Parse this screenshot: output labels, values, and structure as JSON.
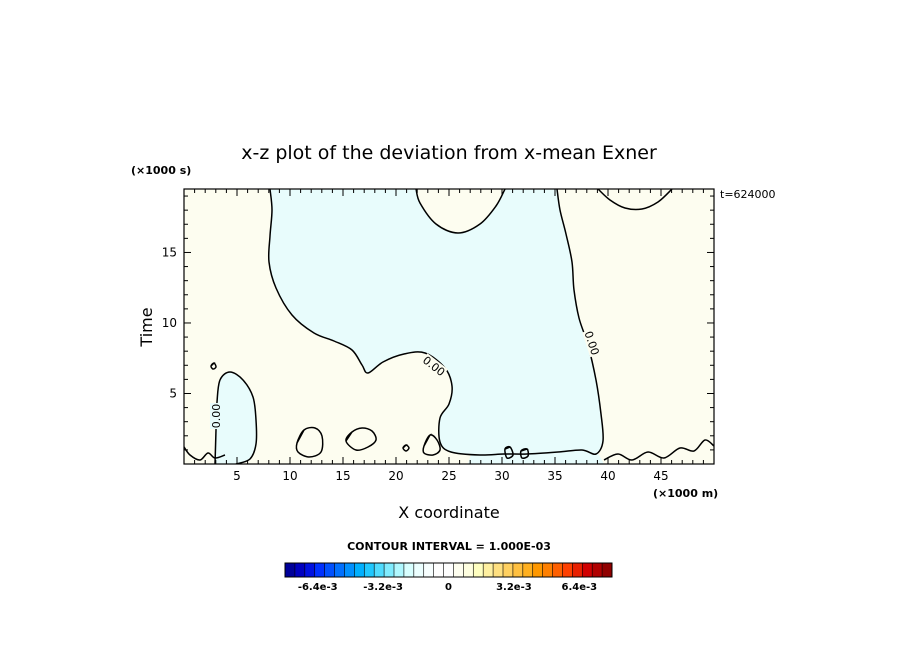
{
  "chart_data": {
    "type": "heatmap",
    "title": "x-z plot of the deviation from x-mean Exner",
    "xlabel": "X coordinate",
    "ylabel": "Time",
    "x_unit": "(×1000 m)",
    "y_unit": "(×1000 s)",
    "time_stamp": "t=624000",
    "xlim": [
      0,
      50
    ],
    "ylim": [
      0,
      19.5
    ],
    "x_ticks": [
      5,
      10,
      15,
      20,
      25,
      30,
      35,
      40,
      45
    ],
    "y_ticks": [
      5,
      10,
      15
    ],
    "contour_label": "0.00",
    "contour_interval_text": "CONTOUR INTERVAL = 1.000E-03",
    "colorbar": {
      "range": [
        -0.008,
        0.008
      ],
      "tick_labels": [
        "-6.4e-3",
        "-3.2e-3",
        "0",
        "3.2e-3",
        "6.4e-3"
      ],
      "colors": [
        "#00009a",
        "#0000c0",
        "#0010e0",
        "#0030ff",
        "#0050ff",
        "#0070ff",
        "#0090ff",
        "#00b0ff",
        "#20c8ff",
        "#50dcff",
        "#80ecff",
        "#b0f8ff",
        "#d8ffff",
        "#ecffff",
        "#f8ffff",
        "#ffffff",
        "#ffffff",
        "#fffff0",
        "#ffffe0",
        "#ffffc0",
        "#fff0a0",
        "#ffe080",
        "#ffd060",
        "#ffc040",
        "#ffb020",
        "#ff9800",
        "#ff8000",
        "#ff6000",
        "#ff4000",
        "#e82000",
        "#d00000",
        "#b00000",
        "#900000"
      ]
    },
    "field_colors": {
      "negative": "#e8fcfc",
      "positive": "#fdfdf0"
    }
  }
}
